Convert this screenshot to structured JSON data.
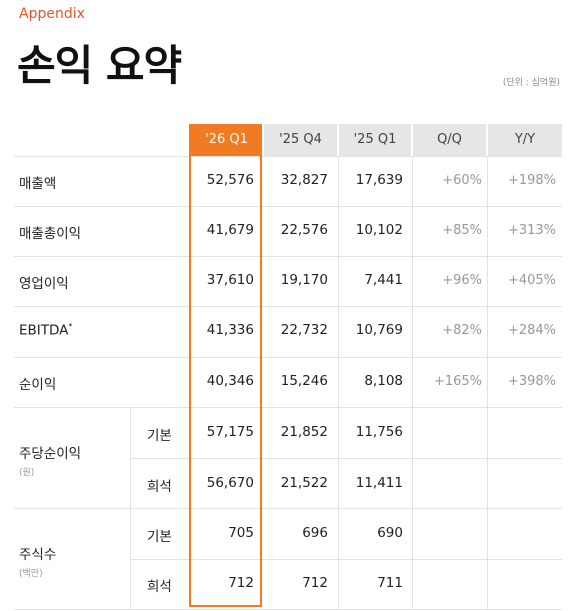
{
  "header": {
    "appendix": "Appendix",
    "title": "손익 요약",
    "unit": "(단위 : 십억원)"
  },
  "columns": [
    "'26 Q1",
    "'25 Q4",
    "'25 Q1",
    "Q/Q",
    "Y/Y"
  ],
  "rows": [
    {
      "label": "매출액",
      "values": [
        "52,576",
        "32,827",
        "17,639"
      ],
      "qq": "+60%",
      "yy": "+198%"
    },
    {
      "label": "매출총이익",
      "values": [
        "41,679",
        "22,576",
        "10,102"
      ],
      "qq": "+85%",
      "yy": "+313%"
    },
    {
      "label": "영업이익",
      "values": [
        "37,610",
        "19,170",
        "7,441"
      ],
      "qq": "+96%",
      "yy": "+405%"
    },
    {
      "label": "EBITDA",
      "label_mark": "*",
      "values": [
        "41,336",
        "22,732",
        "10,769"
      ],
      "qq": "+82%",
      "yy": "+284%"
    },
    {
      "label": "순이익",
      "values": [
        "40,346",
        "15,246",
        "8,108"
      ],
      "qq": "+165%",
      "yy": "+398%"
    }
  ],
  "eps": {
    "label": "주당순이익",
    "unit": "(원)",
    "basic": {
      "label": "기본",
      "values": [
        "57,175",
        "21,852",
        "11,756"
      ]
    },
    "diluted": {
      "label": "희석",
      "values": [
        "56,670",
        "21,522",
        "11,411"
      ]
    }
  },
  "shares": {
    "label": "주식수",
    "unit": "(백만)",
    "basic": {
      "label": "기본",
      "values": [
        "705",
        "696",
        "690"
      ]
    },
    "diluted": {
      "label": "희석",
      "values": [
        "712",
        "712",
        "711"
      ]
    }
  },
  "colors": {
    "accent": "#f07b22",
    "appendix": "#e8542b",
    "header_bg": "#e6e6e6"
  }
}
